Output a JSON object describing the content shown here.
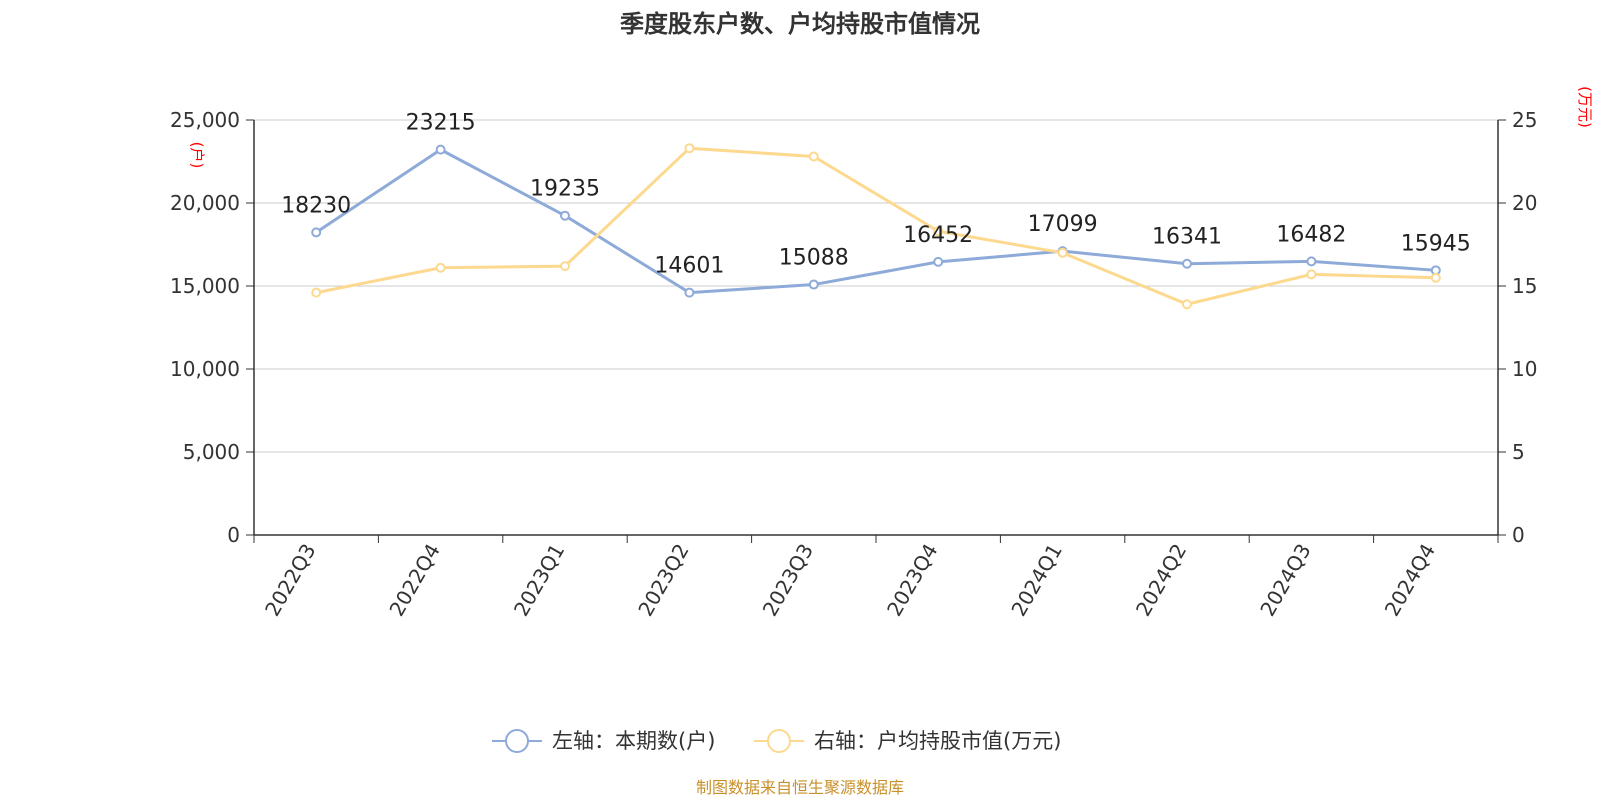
{
  "chart_data": {
    "type": "line",
    "title": "季度股东户数、户均持股市值情况",
    "categories": [
      "2022Q3",
      "2022Q4",
      "2023Q1",
      "2023Q2",
      "2023Q3",
      "2023Q4",
      "2024Q1",
      "2024Q2",
      "2024Q3",
      "2024Q4"
    ],
    "left_axis": {
      "unit": "(户)",
      "ylim": [
        0,
        25000
      ],
      "ticks": [
        "0",
        "5,000",
        "10,000",
        "15,000",
        "20,000",
        "25,000"
      ]
    },
    "right_axis": {
      "unit": "(万元)",
      "ylim": [
        0,
        25
      ],
      "ticks": [
        "0",
        "5",
        "10",
        "15",
        "20",
        "25"
      ]
    },
    "series": [
      {
        "name": "左轴：本期数(户)",
        "axis": "left",
        "color": "#8eaad8",
        "values": [
          18230,
          23215,
          19235,
          14601,
          15088,
          16452,
          17099,
          16341,
          16482,
          15945
        ],
        "labels": [
          "18230",
          "23215",
          "19235",
          "14601",
          "15088",
          "16452",
          "17099",
          "16341",
          "16482",
          "15945"
        ]
      },
      {
        "name": "右轴：户均持股市值(万元)",
        "axis": "right",
        "color": "#fcd98e",
        "values": [
          14.6,
          16.1,
          16.2,
          23.3,
          22.8,
          18.3,
          17.0,
          13.9,
          15.7,
          15.5
        ]
      }
    ],
    "grid": true,
    "legend_position": "bottom"
  },
  "source_text": "制图数据来自恒生聚源数据库"
}
